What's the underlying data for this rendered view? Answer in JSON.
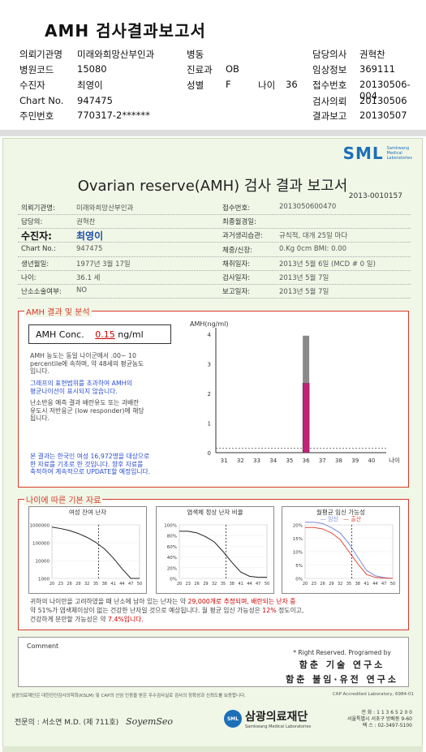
{
  "page_title": "AMH 검사결과보고서",
  "header": {
    "rows": [
      {
        "k1": "의뢰기관명",
        "v1": "미래와희망산부인과",
        "k2": "병동",
        "v2": "",
        "k3": "담당의사",
        "v3": "권혁찬"
      },
      {
        "k1": "병원코드",
        "v1": "15080",
        "k2": "진료과",
        "v2": "OB",
        "k3": "임상정보",
        "v3": "369111"
      },
      {
        "k1": "수진자",
        "v1": "최영이",
        "k2": "성별",
        "v2": "F",
        "k2b": "나이",
        "v2b": "36",
        "k3": "접수번호",
        "v3": "20130506-004"
      },
      {
        "k1": "Chart No.",
        "v1": "947475",
        "k2": "",
        "v2": "",
        "k3": "검사의뢰",
        "v3": "20130506"
      },
      {
        "k1": "주민번호",
        "v1": "770317-2******",
        "k2": "",
        "v2": "",
        "k3": "결과보고",
        "v3": "20130507"
      }
    ]
  },
  "report": {
    "logo": "SML",
    "logo_sub": [
      "Samkwang",
      "Medical",
      "Laboratories"
    ],
    "title": "Ovarian reserve(AMH) 검사 결과 보고서",
    "report_no": "2013-0010157",
    "info": [
      {
        "k1": "의뢰기관명:",
        "v1": "미래와희망산부인과",
        "k2": "접수번호:",
        "v2": "2013050600470"
      },
      {
        "k1": "담당의:",
        "v1": "권혁찬",
        "k2": "최종월경일:",
        "v2": ""
      },
      {
        "k1": "수진자:",
        "v1": "최영이",
        "k2": "과거생리습관:",
        "v2": "규칙적, 대개 25일 마다"
      },
      {
        "k1": "Chart No.:",
        "v1": "947475",
        "k2": "체중/신장:",
        "v2": "0.Kg     0cm    BMI:  0.00"
      },
      {
        "k1": "생년월일:",
        "v1": "1977년 3월 17일",
        "k2": "채취일자:",
        "v2": "2013년 5월 6일    (MCD # 0 일)"
      },
      {
        "k1": "나이:",
        "v1": "36.1 세",
        "k2": "검사일자:",
        "v2": "2013년 5월 7일"
      },
      {
        "k1": "난소소술여부:",
        "v1": "NO",
        "k2": "보고일자:",
        "v2": "2013년 5월 7일"
      }
    ],
    "amh_section_title": "AMH 결과 및 분석",
    "conc_label": "AMH Conc.",
    "conc_value": "0.15",
    "conc_unit": "ng/ml",
    "text1": [
      "AMH 농도는 동일 나이군에서 .00~ 10",
      "percentile에 속하며, 약 48세의 평균농도",
      "입니다."
    ],
    "text2": [
      "그래프의 표현범위를 초과하여 AMH의",
      "평균나이선이 표시되지 않습니다."
    ],
    "text3": [
      "난소반응 예측 결과 배란유도 또는 과배란",
      "유도시 저반응군 (low responder)에 해당",
      "됩니다."
    ],
    "text4": [
      "본 결과는 한국인 여성 16,972명을 대상으로",
      "한 자료를 기초로 한 것입니다. 향후 자료를",
      "축적하여 계속적으로 UPDATE할 예정입니다."
    ],
    "age_section_title": "나이에 따른 기본 자료",
    "mini_titles": [
      "여성 잔여 난자",
      "염색체 정상 난자 비율",
      "월평균 임신 가능성"
    ],
    "mini_legend": [
      "임신",
      "출산"
    ],
    "bottom_text": [
      "귀하의 나이만을 고려하였을 때 난소에 남아 있는 난자는 약",
      "29,000개로 추정되며, 배란되는 난자 중",
      "약",
      "51%가 염색체이상이 없는 건강한 난자일 것으로 예상됩니다. 월 평균 임신 가능성은",
      "12%",
      "정도이고,",
      "건강하게 분만할 가능성은 약",
      "7.4%입니다."
    ],
    "comment_label": "Comment",
    "rights": "* Right Reserved. Programed by",
    "inst1": "함춘 기술 연구소",
    "inst2": "함춘 불임·유전 연구소",
    "footer_note": "삼광의료재단은 대한진단검사의학회(KSLM) 및 CAP의 신임 인증을 받은 우수검사실로 검사의 정확성과 신뢰도를 보증합니다.",
    "footer_cap": "CAP  Accredited  Laboratory,  6984-01",
    "sign_label": "전문의 : 서소연 M.D. (제 711호)",
    "sign_script": "SoyemSeo",
    "foundation_name": "삼광의료재단",
    "foundation_eng": "Samkwang Medical Laboratories",
    "address": [
      "전 화 : 1 1 3 6 5 2 0 0",
      "서울특별시 서초구 방배동 9-60",
      "팩 스 : 02-3497-5100"
    ]
  },
  "chart_data": [
    {
      "type": "bar",
      "title": "",
      "ylabel": "AMH(ng/ml)",
      "xlabel": "나이",
      "categories": [
        "31",
        "32",
        "33",
        "34",
        "35",
        "36",
        "37",
        "38",
        "39",
        "40"
      ],
      "ylim": [
        0,
        4
      ],
      "yticks": [
        "0",
        "1",
        "2",
        "3",
        "4"
      ],
      "series": [
        {
          "name": "",
          "values": [
            null,
            null,
            null,
            null,
            null,
            2.35,
            null,
            null,
            null,
            null
          ],
          "color": "#c0227a"
        },
        {
          "name": "",
          "values": [
            null,
            null,
            null,
            null,
            null,
            1.6,
            null,
            null,
            null,
            null
          ],
          "color": "#8a8a8a",
          "stack_on": 2.35
        }
      ],
      "patient_value": 0.15
    },
    {
      "type": "line",
      "title": "여성 잔여 난자",
      "y_log": true,
      "yticks": [
        "1000",
        "10000",
        "100000",
        "1000000"
      ],
      "x": [
        20,
        23,
        26,
        29,
        32,
        35,
        38,
        41,
        44,
        47,
        50
      ],
      "values": [
        750000,
        620000,
        480000,
        330000,
        200000,
        105000,
        45000,
        14000,
        3500,
        900,
        150
      ],
      "marker_x": 36
    },
    {
      "type": "line",
      "title": "염색체 정상 난자 비율",
      "yticks": [
        "0%",
        "20%",
        "40%",
        "60%",
        "80%",
        "100%"
      ],
      "x": [
        20,
        23,
        26,
        29,
        32,
        35,
        38,
        41,
        44,
        47,
        50
      ],
      "values": [
        88,
        88,
        85,
        78,
        68,
        50,
        30,
        12,
        4,
        2,
        2
      ],
      "marker_x": 36
    },
    {
      "type": "line",
      "title": "월평균 임신 가능성",
      "yticks": [
        "0%",
        "5%",
        "10%",
        "15%",
        "20%"
      ],
      "x": [
        20,
        23,
        26,
        29,
        32,
        35,
        38,
        41,
        44,
        47,
        50
      ],
      "series": [
        {
          "name": "임신",
          "values": [
            21,
            21,
            20.5,
            19,
            17,
            13,
            8,
            3,
            1,
            0.3,
            0
          ],
          "color": "#7a8ad8"
        },
        {
          "name": "출산",
          "values": [
            19,
            19,
            18.5,
            17,
            14.5,
            10,
            5.5,
            1.5,
            0.4,
            0.1,
            0
          ],
          "color": "#e04a3a"
        }
      ],
      "marker_x": 36
    }
  ]
}
